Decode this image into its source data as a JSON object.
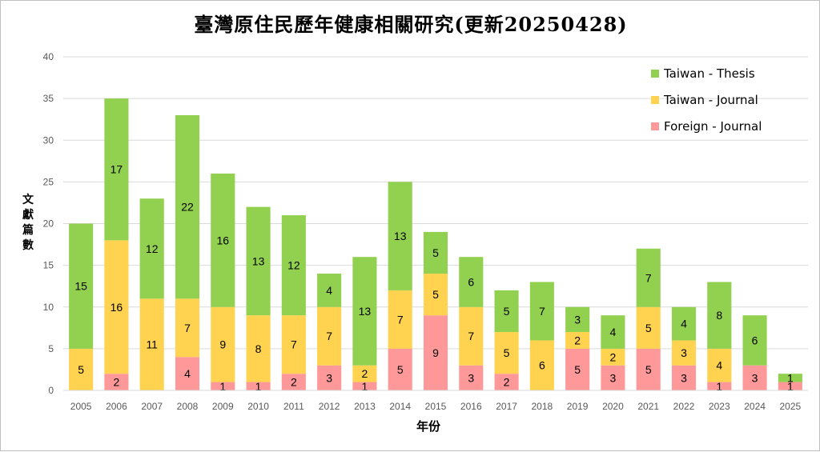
{
  "chart_data": {
    "type": "bar",
    "stacked": true,
    "title": "臺灣原住民歷年健康相關研究(更新20250428)",
    "xlabel": "年份",
    "ylabel": "文獻篇數",
    "ylim": [
      0,
      40
    ],
    "yticks": [
      0,
      5,
      10,
      15,
      20,
      25,
      30,
      35,
      40
    ],
    "grid": true,
    "legend_position": "top-right",
    "categories": [
      "2005",
      "2006",
      "2007",
      "2008",
      "2009",
      "2010",
      "2011",
      "2012",
      "2013",
      "2014",
      "2015",
      "2016",
      "2017",
      "2018",
      "2019",
      "2020",
      "2021",
      "2022",
      "2023",
      "2024",
      "2025"
    ],
    "series": [
      {
        "name": "Foreign - Journal",
        "color": "#FF9999",
        "values": [
          0,
          2,
          0,
          4,
          1,
          1,
          2,
          3,
          1,
          5,
          9,
          3,
          2,
          0,
          5,
          3,
          5,
          3,
          1,
          3,
          1
        ]
      },
      {
        "name": "Taiwan - Journal",
        "color": "#FFD34F",
        "values": [
          5,
          16,
          11,
          7,
          9,
          8,
          7,
          7,
          2,
          7,
          5,
          7,
          5,
          6,
          2,
          2,
          5,
          3,
          4,
          0,
          0
        ]
      },
      {
        "name": "Taiwan - Thesis",
        "color": "#92D050",
        "values": [
          15,
          17,
          12,
          22,
          16,
          13,
          12,
          4,
          13,
          13,
          5,
          6,
          5,
          7,
          3,
          4,
          7,
          4,
          8,
          6,
          1
        ]
      }
    ],
    "legend_order": [
      "Taiwan - Thesis",
      "Taiwan - Journal",
      "Foreign - Journal"
    ]
  }
}
